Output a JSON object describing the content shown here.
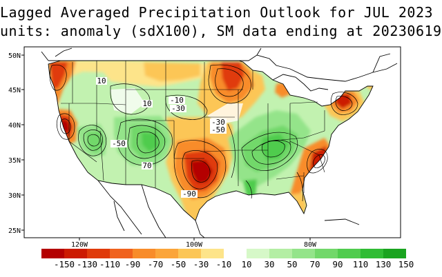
{
  "title_line1": "Lagged Averaged Precipitation Outlook for JUL 2023",
  "title_line2": "units: anomaly (sdX100), SM data ending at 20230619",
  "lat_ticks": [
    "50N",
    "45N",
    "40N",
    "35N",
    "30N",
    "25N"
  ],
  "lon_ticks": [
    "120W",
    "100W",
    "80W"
  ],
  "contour_labels": [
    {
      "text": "10",
      "region": "Idaho"
    },
    {
      "text": "10",
      "region": "Wyoming"
    },
    {
      "text": "-10",
      "region": "South Dakota"
    },
    {
      "text": "-30",
      "region": "Nebraska"
    },
    {
      "text": "-30",
      "region": "Missouri"
    },
    {
      "text": "-50",
      "region": "Missouri"
    },
    {
      "text": "-50",
      "region": "Utah"
    },
    {
      "text": "70",
      "region": "New Mexico"
    },
    {
      "text": "-90",
      "region": "Texas"
    }
  ],
  "colorbar": {
    "labels": [
      "-150",
      "-130",
      "-110",
      "-90",
      "-70",
      "-50",
      "-30",
      "-10",
      "10",
      "30",
      "50",
      "70",
      "90",
      "110",
      "130",
      "150"
    ],
    "colors": [
      "#b40000",
      "#cc1a00",
      "#e03a0a",
      "#f0621e",
      "#f88c2a",
      "#fba53a",
      "#fcc657",
      "#fde48a",
      "#ffffff",
      "#d6f8c8",
      "#b4eea4",
      "#94e48a",
      "#72d86a",
      "#50cc4e",
      "#30bc34",
      "#1aa420"
    ]
  }
}
